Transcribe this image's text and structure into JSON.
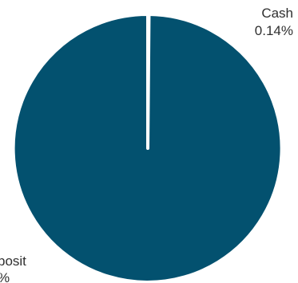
{
  "chart_data": {
    "type": "pie",
    "start_angle_deg": 0,
    "direction": "clockwise",
    "separator_color": "#ffffff",
    "slices": [
      {
        "label_lines": [
          "Cash",
          "0.14%"
        ],
        "value": 0.14,
        "color": "#03516f"
      },
      {
        "label_lines": [
          "posit",
          "%"
        ],
        "value": 99.86,
        "color": "#03516f"
      }
    ]
  }
}
